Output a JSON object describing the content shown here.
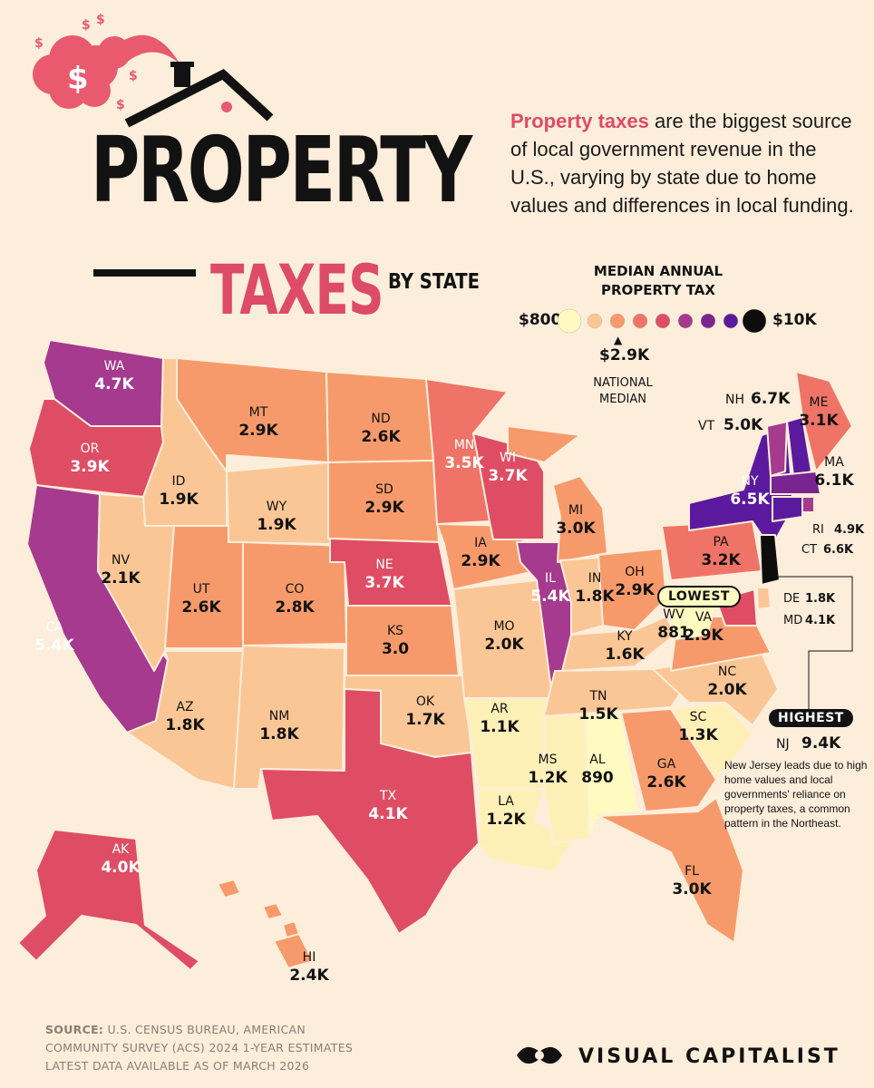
{
  "title": "PROPERTY",
  "subtitle_taxes": "TAXES",
  "subtitle_by_state": "BY STATE",
  "intro": {
    "highlight": "Property taxes",
    "rest": " are the biggest source of local government revenue in the U.S., varying by state due to home values and differences in local funding."
  },
  "legend": {
    "title_line1": "MEDIAN ANNUAL",
    "title_line2": "PROPERTY TAX",
    "min_label": "$800",
    "max_label": "$10K",
    "median_value": "$2.9K",
    "median_label_line1": "NATIONAL",
    "median_label_line2": "MEDIAN",
    "swatches": [
      "#fffac0",
      "#fbc696",
      "#f79a6b",
      "#ef7467",
      "#df4d64",
      "#a53a8e",
      "#7a2492",
      "#5b1a9e",
      "#0e0d0d"
    ]
  },
  "states": [
    {
      "code": "WA",
      "value": "4.7K",
      "color": "#a53a8e"
    },
    {
      "code": "OR",
      "value": "3.9K",
      "color": "#df4d64"
    },
    {
      "code": "CA",
      "value": "5.4K",
      "color": "#a53a8e"
    },
    {
      "code": "ID",
      "value": "1.9K",
      "color": "#fbc696"
    },
    {
      "code": "NV",
      "value": "2.1K",
      "color": "#fbc696"
    },
    {
      "code": "MT",
      "value": "2.9K",
      "color": "#f79a6b"
    },
    {
      "code": "WY",
      "value": "1.9K",
      "color": "#fbc696"
    },
    {
      "code": "UT",
      "value": "2.6K",
      "color": "#f79a6b"
    },
    {
      "code": "AZ",
      "value": "1.8K",
      "color": "#fbc696"
    },
    {
      "code": "CO",
      "value": "2.8K",
      "color": "#f79a6b"
    },
    {
      "code": "NM",
      "value": "1.8K",
      "color": "#fbc696"
    },
    {
      "code": "ND",
      "value": "2.6K",
      "color": "#f79a6b"
    },
    {
      "code": "SD",
      "value": "2.9K",
      "color": "#f79a6b"
    },
    {
      "code": "NE",
      "value": "3.7K",
      "color": "#df4d64"
    },
    {
      "code": "KS",
      "value": "3.0",
      "color": "#f79a6b"
    },
    {
      "code": "OK",
      "value": "1.7K",
      "color": "#fbc696"
    },
    {
      "code": "TX",
      "value": "4.1K",
      "color": "#df4d64"
    },
    {
      "code": "MN",
      "value": "3.5K",
      "color": "#ef7467"
    },
    {
      "code": "IA",
      "value": "2.9K",
      "color": "#f79a6b"
    },
    {
      "code": "MO",
      "value": "2.0K",
      "color": "#fbc696"
    },
    {
      "code": "AR",
      "value": "1.1K",
      "color": "#fff0b8"
    },
    {
      "code": "LA",
      "value": "1.2K",
      "color": "#fff0b8"
    },
    {
      "code": "WI",
      "value": "3.7K",
      "color": "#df4d64"
    },
    {
      "code": "IL",
      "value": "5.4K",
      "color": "#a53a8e"
    },
    {
      "code": "MI",
      "value": "3.0K",
      "color": "#f79a6b"
    },
    {
      "code": "IN",
      "value": "1.8K",
      "color": "#fbc696"
    },
    {
      "code": "OH",
      "value": "2.9K",
      "color": "#f79a6b"
    },
    {
      "code": "KY",
      "value": "1.6K",
      "color": "#fbc696"
    },
    {
      "code": "TN",
      "value": "1.5K",
      "color": "#fbc696"
    },
    {
      "code": "MS",
      "value": "1.2K",
      "color": "#fff0b8"
    },
    {
      "code": "AL",
      "value": "890",
      "color": "#fffac0"
    },
    {
      "code": "GA",
      "value": "2.6K",
      "color": "#f79a6b"
    },
    {
      "code": "FL",
      "value": "3.0K",
      "color": "#f79a6b"
    },
    {
      "code": "SC",
      "value": "1.3K",
      "color": "#fff0b8"
    },
    {
      "code": "NC",
      "value": "2.0K",
      "color": "#fbc696"
    },
    {
      "code": "VA",
      "value": "2.9K",
      "color": "#f79a6b"
    },
    {
      "code": "WV",
      "value": "881",
      "color": "#fffac0"
    },
    {
      "code": "PA",
      "value": "3.2K",
      "color": "#ef7467"
    },
    {
      "code": "NY",
      "value": "6.5K",
      "color": "#5b1a9e"
    },
    {
      "code": "VT",
      "value": "5.0K",
      "color": "#a53a8e"
    },
    {
      "code": "NH",
      "value": "6.7K",
      "color": "#5b1a9e"
    },
    {
      "code": "ME",
      "value": "3.1K",
      "color": "#ef7467"
    },
    {
      "code": "MA",
      "value": "6.1K",
      "color": "#7a2492"
    },
    {
      "code": "RI",
      "value": "4.9K",
      "color": "#a53a8e"
    },
    {
      "code": "CT",
      "value": "6.6K",
      "color": "#5b1a9e"
    },
    {
      "code": "NJ",
      "value": "9.4K",
      "color": "#0e0d0d"
    },
    {
      "code": "DE",
      "value": "1.8K",
      "color": "#fbc696"
    },
    {
      "code": "MD",
      "value": "4.1K",
      "color": "#df4d64"
    },
    {
      "code": "AK",
      "value": "4.0K",
      "color": "#df4d64"
    },
    {
      "code": "HI",
      "value": "2.4K",
      "color": "#f79a6b"
    }
  ],
  "lowest_label": "LOWEST",
  "highest_label": "HIGHEST",
  "nj_note": "New Jersey leads due to high home values and local governments' reliance on property taxes, a common pattern in the Northeast.",
  "source": {
    "label": "SOURCE:",
    "line1": "U.S. CENSUS BUREAU, AMERICAN",
    "line2": "COMMUNITY SURVEY (ACS) 2024 1-YEAR ESTIMATES",
    "line3": "LATEST DATA AVAILABLE AS OF MARCH 2026"
  },
  "brand": "VISUAL CAPITALIST"
}
